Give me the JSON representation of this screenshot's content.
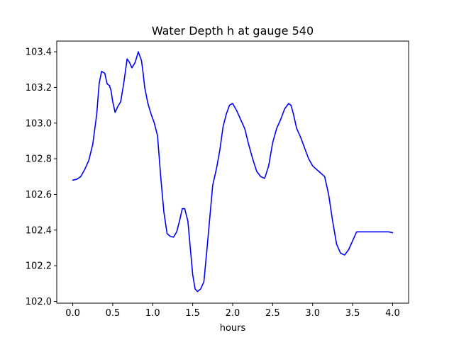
{
  "chart_data": {
    "type": "line",
    "title": "Water Depth h at gauge 540",
    "xlabel": "hours",
    "ylabel": "",
    "xlim": [
      -0.2,
      4.2
    ],
    "ylim": [
      101.99,
      103.46
    ],
    "xticks": [
      0.0,
      0.5,
      1.0,
      1.5,
      2.0,
      2.5,
      3.0,
      3.5,
      4.0
    ],
    "xtick_labels": [
      "0.0",
      "0.5",
      "1.0",
      "1.5",
      "2.0",
      "2.5",
      "3.0",
      "3.5",
      "4.0"
    ],
    "yticks": [
      102.0,
      102.2,
      102.4,
      102.6,
      102.8,
      103.0,
      103.2,
      103.4
    ],
    "ytick_labels": [
      "102.0",
      "102.2",
      "102.4",
      "102.6",
      "102.8",
      "103.0",
      "103.2",
      "103.4"
    ],
    "grid": false,
    "series": [
      {
        "color": "#0000ff",
        "x": [
          0.0,
          0.05,
          0.1,
          0.15,
          0.2,
          0.25,
          0.3,
          0.33,
          0.36,
          0.4,
          0.43,
          0.46,
          0.48,
          0.5,
          0.53,
          0.56,
          0.6,
          0.64,
          0.68,
          0.71,
          0.74,
          0.78,
          0.82,
          0.86,
          0.88,
          0.9,
          0.94,
          0.98,
          1.02,
          1.06,
          1.1,
          1.14,
          1.18,
          1.22,
          1.26,
          1.3,
          1.34,
          1.37,
          1.4,
          1.44,
          1.47,
          1.5,
          1.53,
          1.56,
          1.6,
          1.64,
          1.68,
          1.72,
          1.75,
          1.8,
          1.84,
          1.88,
          1.92,
          1.96,
          2.0,
          2.05,
          2.1,
          2.15,
          2.2,
          2.25,
          2.3,
          2.35,
          2.4,
          2.45,
          2.5,
          2.55,
          2.6,
          2.65,
          2.7,
          2.73,
          2.76,
          2.8,
          2.85,
          2.9,
          2.95,
          3.0,
          3.05,
          3.1,
          3.15,
          3.2,
          3.25,
          3.3,
          3.35,
          3.4,
          3.45,
          3.5,
          3.55,
          3.6,
          3.65,
          3.7,
          3.75,
          3.8,
          3.85,
          3.9,
          3.95,
          4.0
        ],
        "y": [
          102.68,
          102.685,
          102.7,
          102.74,
          102.79,
          102.88,
          103.05,
          103.22,
          103.29,
          103.28,
          103.22,
          103.21,
          103.18,
          103.12,
          103.06,
          103.09,
          103.12,
          103.23,
          103.36,
          103.34,
          103.31,
          103.34,
          103.4,
          103.35,
          103.28,
          103.2,
          103.11,
          103.05,
          103.0,
          102.93,
          102.7,
          102.5,
          102.38,
          102.365,
          102.36,
          102.39,
          102.46,
          102.52,
          102.52,
          102.45,
          102.3,
          102.15,
          102.07,
          102.055,
          102.07,
          102.11,
          102.3,
          102.5,
          102.65,
          102.75,
          102.85,
          102.98,
          103.05,
          103.1,
          103.11,
          103.07,
          103.02,
          102.97,
          102.88,
          102.8,
          102.73,
          102.7,
          102.69,
          102.76,
          102.89,
          102.97,
          103.02,
          103.08,
          103.11,
          103.1,
          103.05,
          102.97,
          102.92,
          102.86,
          102.8,
          102.76,
          102.74,
          102.72,
          102.7,
          102.6,
          102.45,
          102.32,
          102.27,
          102.26,
          102.29,
          102.34,
          102.39,
          102.39,
          102.39,
          102.39,
          102.39,
          102.39,
          102.39,
          102.39,
          102.39,
          102.385
        ]
      }
    ]
  }
}
